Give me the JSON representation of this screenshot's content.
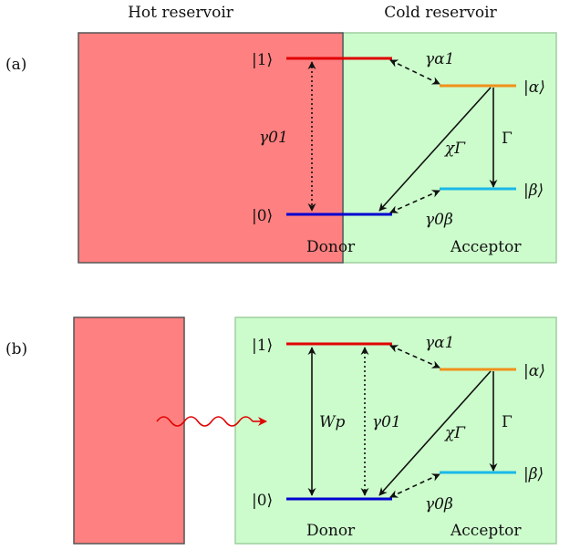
{
  "headers": {
    "hot": "Hot reservoir",
    "cold": "Cold reservoir"
  },
  "panels": {
    "a": {
      "tag": "(a)",
      "level_1": "|1⟩",
      "level_0": "|0⟩",
      "level_alpha": "|α⟩",
      "level_beta": "|β⟩",
      "gamma_a1": "γα1",
      "gamma_01": "γ01",
      "chi_gamma": "χΓ",
      "Gamma": "Γ",
      "gamma_0b": "γ0β",
      "donor": "Donor",
      "acceptor": "Acceptor"
    },
    "b": {
      "tag": "(b)",
      "level_1": "|1⟩",
      "level_0": "|0⟩",
      "level_alpha": "|α⟩",
      "level_beta": "|β⟩",
      "gamma_a1": "γα1",
      "gamma_01": "γ01",
      "pump": "Wp",
      "chi_gamma": "χΓ",
      "Gamma": "Γ",
      "gamma_0b": "γ0β",
      "donor": "Donor",
      "acceptor": "Acceptor"
    }
  },
  "colors": {
    "hot_fill": "#ff8080",
    "cold_fill": "#ccfccc",
    "level_1": "#e00000",
    "level_0": "#0000d0",
    "level_alpha": "#f0901a",
    "level_beta": "#1ab8e8",
    "photon": "#e00000"
  }
}
